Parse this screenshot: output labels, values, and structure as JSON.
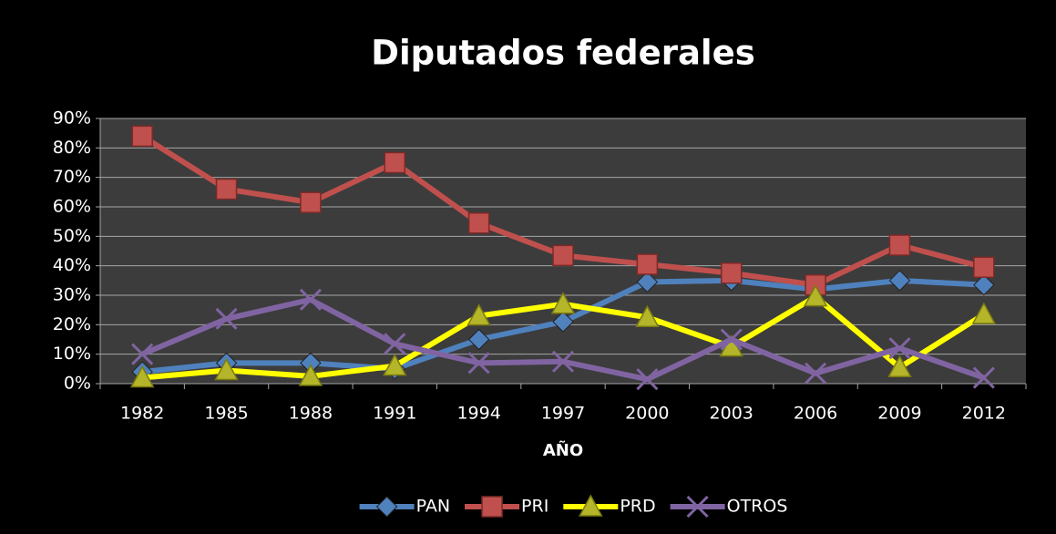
{
  "chart_data": {
    "type": "line",
    "title": "Diputados federales",
    "x_label": "AÑO",
    "categories": [
      "1982",
      "1985",
      "1988",
      "1991",
      "1994",
      "1997",
      "2000",
      "2003",
      "2006",
      "2009",
      "2012"
    ],
    "series": [
      {
        "name": "PAN",
        "color": "#4f81bd",
        "marker": "diamond",
        "values": [
          4,
          7,
          7,
          5,
          15,
          21,
          34.5,
          35,
          32,
          35,
          33.5
        ]
      },
      {
        "name": "PRI",
        "color": "#c0504d",
        "marker": "square",
        "values": [
          84,
          66,
          61.5,
          75,
          54.5,
          43.5,
          40.5,
          37.5,
          33.5,
          47,
          39.5
        ]
      },
      {
        "name": "PRD",
        "color": "#ffff00",
        "marker": "triangle",
        "values": [
          2,
          4.5,
          2.5,
          6,
          23,
          27,
          22.5,
          12.5,
          29.5,
          5.5,
          23.5
        ]
      },
      {
        "name": "OTROS",
        "color": "#8064a2",
        "marker": "x",
        "values": [
          10,
          22,
          28.5,
          13.5,
          7,
          7.5,
          1.5,
          15,
          3.5,
          12,
          2
        ]
      }
    ],
    "ylim": [
      0,
      90
    ],
    "yticks": [
      {
        "value": 0,
        "label": "0%"
      },
      {
        "value": 10,
        "label": "10%"
      },
      {
        "value": 20,
        "label": "20%"
      },
      {
        "value": 30,
        "label": "30%"
      },
      {
        "value": 40,
        "label": "40%"
      },
      {
        "value": 50,
        "label": "50%"
      },
      {
        "value": 60,
        "label": "60%"
      },
      {
        "value": 70,
        "label": "70%"
      },
      {
        "value": 80,
        "label": "80%"
      },
      {
        "value": 90,
        "label": "90%"
      }
    ],
    "grid": true,
    "legend": "bottom"
  }
}
